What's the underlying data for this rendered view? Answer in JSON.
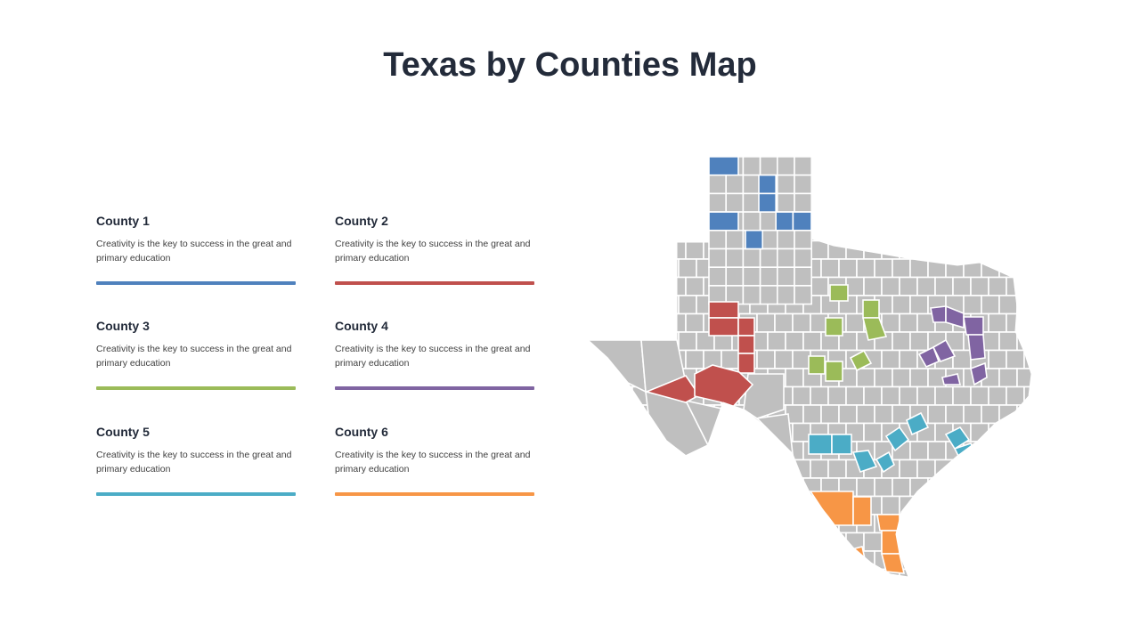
{
  "title": "Texas by Counties Map",
  "legend": [
    {
      "label": "County 1",
      "desc": "Creativity is the key to success in the great and primary education",
      "color": "#4f81bd"
    },
    {
      "label": "County 2",
      "desc": "Creativity is the key to success in the great and primary education",
      "color": "#c0504d"
    },
    {
      "label": "County 3",
      "desc": "Creativity is the key to success in the great and primary education",
      "color": "#9bbb59"
    },
    {
      "label": "County 4",
      "desc": "Creativity is the key to success in the great and primary education",
      "color": "#8064a2"
    },
    {
      "label": "County 5",
      "desc": "Creativity is the key to success in the great and primary education",
      "color": "#4bacc6"
    },
    {
      "label": "County 6",
      "desc": "Creativity is the key to success in the great and primary education",
      "color": "#f79646"
    }
  ],
  "colors": {
    "base": "#bfbfbf",
    "border": "#ffffff"
  }
}
